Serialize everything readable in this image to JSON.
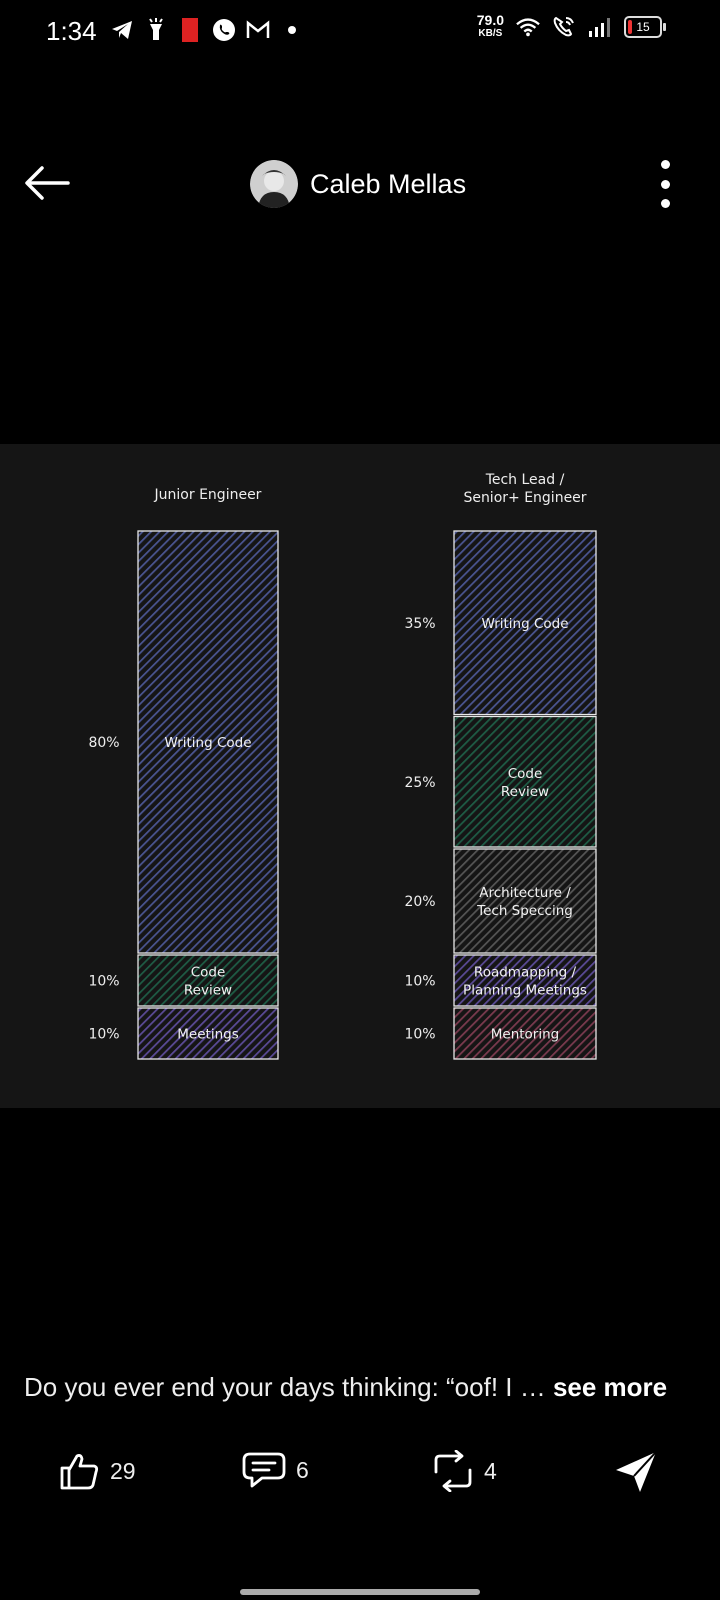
{
  "status": {
    "time": "1:34",
    "speed_value": "79.0",
    "speed_unit": "KB/S",
    "battery": "15",
    "icons": [
      "telegram-icon",
      "flashlight-icon",
      "notification-icon",
      "whatsapp-icon",
      "gmail-icon",
      "dot-icon",
      "wifi-icon",
      "wifi-calling-icon",
      "signal-icon",
      "battery-icon"
    ]
  },
  "header": {
    "author": "Caleb Mellas",
    "icons": [
      "back-arrow-icon",
      "avatar",
      "more-vert-icon"
    ]
  },
  "chart_data": {
    "type": "bar",
    "stacked": true,
    "columns": [
      {
        "title": "Junior Engineer",
        "segments": [
          {
            "label": "Writing Code",
            "value": 80,
            "percent_label": "80%",
            "color": "#4a5591"
          },
          {
            "label": "Code Review",
            "value": 10,
            "percent_label": "10%",
            "color": "#1e5c45"
          },
          {
            "label": "Meetings",
            "value": 10,
            "percent_label": "10%",
            "color": "#5a4a96"
          }
        ]
      },
      {
        "title": "Tech Lead / Senior+ Engineer",
        "segments": [
          {
            "label": "Writing Code",
            "value": 35,
            "percent_label": "35%",
            "color": "#4a5591"
          },
          {
            "label": "Code Review",
            "value": 25,
            "percent_label": "25%",
            "color": "#1e5c45"
          },
          {
            "label": "Architecture / Tech Speccing",
            "value": 20,
            "percent_label": "20%",
            "color": "#555555"
          },
          {
            "label": "Roadmapping / Planning Meetings",
            "value": 10,
            "percent_label": "10%",
            "color": "#5a4a96"
          },
          {
            "label": "Mentoring",
            "value": 10,
            "percent_label": "10%",
            "color": "#7a3a4e"
          }
        ]
      }
    ]
  },
  "post": {
    "caption": "Do you ever end your days thinking: “oof! I …",
    "see_more": "see more"
  },
  "actions": {
    "likes": "29",
    "comments": "6",
    "reposts": "4"
  }
}
